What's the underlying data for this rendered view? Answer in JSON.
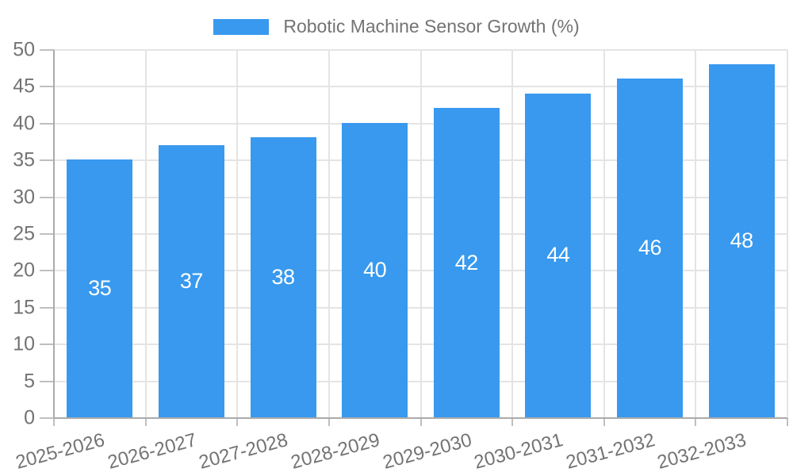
{
  "legend": {
    "label": "Robotic Machine Sensor Growth (%)"
  },
  "chart_data": {
    "type": "bar",
    "title": "",
    "categories": [
      "2025-2026",
      "2026-2027",
      "2027-2028",
      "2028-2029",
      "2029-2030",
      "2030-2031",
      "2031-2032",
      "2032-2033"
    ],
    "series": [
      {
        "name": "Robotic Machine Sensor Growth (%)",
        "values": [
          35,
          37,
          38,
          40,
          42,
          44,
          46,
          48
        ]
      }
    ],
    "xlabel": "",
    "ylabel": "",
    "ylim": [
      0,
      50
    ],
    "ytick_step": 5,
    "yticks": [
      0,
      5,
      10,
      15,
      20,
      25,
      30,
      35,
      40,
      45,
      50
    ],
    "grid": "both",
    "legend_position": "top",
    "value_labels": "inside-center"
  },
  "colors": {
    "bar": "#3899EE",
    "grid": "#E4E4E4",
    "axis": "#ABABAB",
    "tick": "#BFBFBF",
    "label_text": "#737373",
    "value_text": "#FFFFFF",
    "background": "#FFFFFF"
  }
}
